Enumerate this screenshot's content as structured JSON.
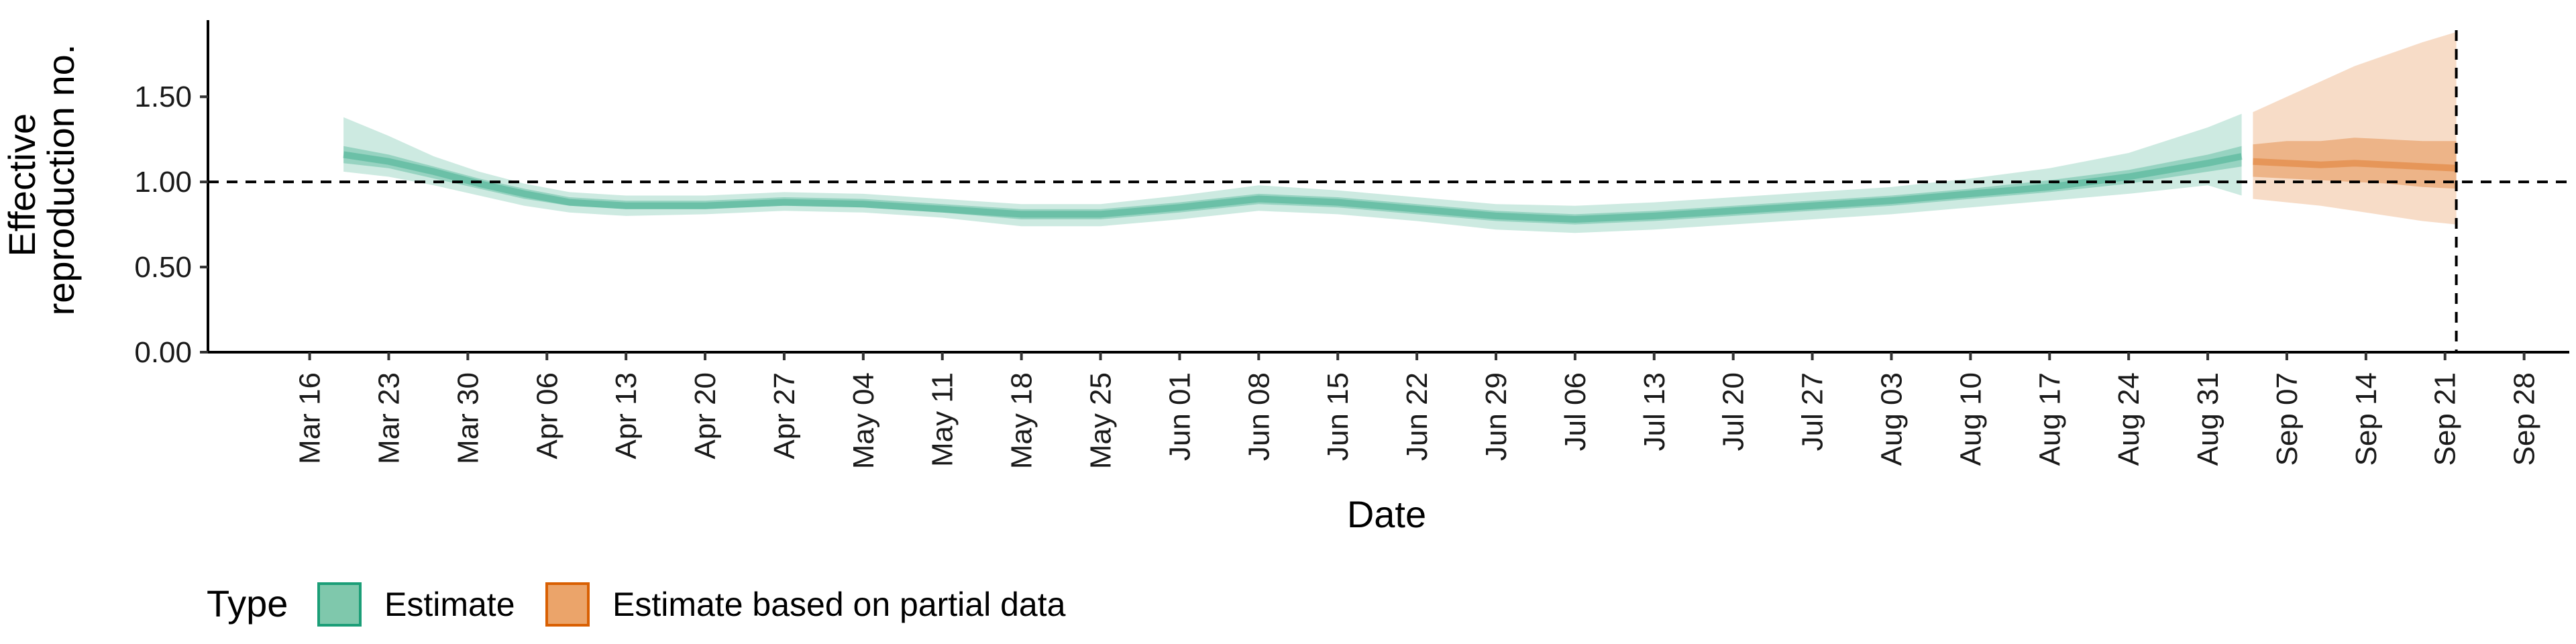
{
  "chart_data": {
    "type": "line",
    "title": "",
    "xlabel": "Date",
    "ylabel": [
      "Effective",
      "reproduction no."
    ],
    "ylim": [
      0,
      1.95
    ],
    "yticks": [
      {
        "value": 0.0,
        "label": "0.00"
      },
      {
        "value": 0.5,
        "label": "0.50"
      },
      {
        "value": 1.0,
        "label": "1.00"
      },
      {
        "value": 1.5,
        "label": "1.50"
      }
    ],
    "xlim": [
      "2020-03-07",
      "2020-10-02"
    ],
    "xticks": [
      {
        "date": "2020-03-16",
        "label": "Mar 16"
      },
      {
        "date": "2020-03-23",
        "label": "Mar 23"
      },
      {
        "date": "2020-03-30",
        "label": "Mar 30"
      },
      {
        "date": "2020-04-06",
        "label": "Apr 06"
      },
      {
        "date": "2020-04-13",
        "label": "Apr 13"
      },
      {
        "date": "2020-04-20",
        "label": "Apr 20"
      },
      {
        "date": "2020-04-27",
        "label": "Apr 27"
      },
      {
        "date": "2020-05-04",
        "label": "May 04"
      },
      {
        "date": "2020-05-11",
        "label": "May 11"
      },
      {
        "date": "2020-05-18",
        "label": "May 18"
      },
      {
        "date": "2020-05-25",
        "label": "May 25"
      },
      {
        "date": "2020-06-01",
        "label": "Jun 01"
      },
      {
        "date": "2020-06-08",
        "label": "Jun 08"
      },
      {
        "date": "2020-06-15",
        "label": "Jun 15"
      },
      {
        "date": "2020-06-22",
        "label": "Jun 22"
      },
      {
        "date": "2020-06-29",
        "label": "Jun 29"
      },
      {
        "date": "2020-07-06",
        "label": "Jul 06"
      },
      {
        "date": "2020-07-13",
        "label": "Jul 13"
      },
      {
        "date": "2020-07-20",
        "label": "Jul 20"
      },
      {
        "date": "2020-07-27",
        "label": "Jul 27"
      },
      {
        "date": "2020-08-03",
        "label": "Aug 03"
      },
      {
        "date": "2020-08-10",
        "label": "Aug 10"
      },
      {
        "date": "2020-08-17",
        "label": "Aug 17"
      },
      {
        "date": "2020-08-24",
        "label": "Aug 24"
      },
      {
        "date": "2020-08-31",
        "label": "Aug 31"
      },
      {
        "date": "2020-09-07",
        "label": "Sep 07"
      },
      {
        "date": "2020-09-14",
        "label": "Sep 14"
      },
      {
        "date": "2020-09-21",
        "label": "Sep 21"
      },
      {
        "date": "2020-09-28",
        "label": "Sep 28"
      }
    ],
    "reference_line_y": 1.0,
    "reference_line_x": "2020-09-22",
    "grid": false,
    "legend": {
      "title": "Type",
      "position": "bottom-left"
    },
    "series": [
      {
        "name": "Estimate",
        "color": "#1b9e77",
        "points": [
          {
            "date": "2020-03-19",
            "median": 1.16,
            "lo50": 1.11,
            "hi50": 1.21,
            "lo90": 1.06,
            "hi90": 1.38
          },
          {
            "date": "2020-03-23",
            "median": 1.12,
            "lo50": 1.08,
            "hi50": 1.16,
            "lo90": 1.03,
            "hi90": 1.27
          },
          {
            "date": "2020-03-27",
            "median": 1.06,
            "lo50": 1.02,
            "hi50": 1.09,
            "lo90": 0.98,
            "hi90": 1.15
          },
          {
            "date": "2020-03-31",
            "median": 0.99,
            "lo50": 0.96,
            "hi50": 1.02,
            "lo90": 0.92,
            "hi90": 1.06
          },
          {
            "date": "2020-04-04",
            "median": 0.93,
            "lo50": 0.9,
            "hi50": 0.96,
            "lo90": 0.86,
            "hi90": 0.99
          },
          {
            "date": "2020-04-08",
            "median": 0.88,
            "lo50": 0.86,
            "hi50": 0.91,
            "lo90": 0.82,
            "hi90": 0.94
          },
          {
            "date": "2020-04-13",
            "median": 0.86,
            "lo50": 0.84,
            "hi50": 0.89,
            "lo90": 0.8,
            "hi90": 0.92
          },
          {
            "date": "2020-04-20",
            "median": 0.86,
            "lo50": 0.84,
            "hi50": 0.89,
            "lo90": 0.81,
            "hi90": 0.92
          },
          {
            "date": "2020-04-27",
            "median": 0.88,
            "lo50": 0.86,
            "hi50": 0.91,
            "lo90": 0.83,
            "hi90": 0.94
          },
          {
            "date": "2020-05-04",
            "median": 0.87,
            "lo50": 0.85,
            "hi50": 0.9,
            "lo90": 0.82,
            "hi90": 0.93
          },
          {
            "date": "2020-05-11",
            "median": 0.84,
            "lo50": 0.82,
            "hi50": 0.87,
            "lo90": 0.79,
            "hi90": 0.9
          },
          {
            "date": "2020-05-18",
            "median": 0.81,
            "lo50": 0.78,
            "hi50": 0.84,
            "lo90": 0.74,
            "hi90": 0.87
          },
          {
            "date": "2020-05-25",
            "median": 0.81,
            "lo50": 0.78,
            "hi50": 0.84,
            "lo90": 0.74,
            "hi90": 0.87
          },
          {
            "date": "2020-06-01",
            "median": 0.85,
            "lo50": 0.82,
            "hi50": 0.88,
            "lo90": 0.78,
            "hi90": 0.92
          },
          {
            "date": "2020-06-08",
            "median": 0.9,
            "lo50": 0.87,
            "hi50": 0.93,
            "lo90": 0.83,
            "hi90": 0.98
          },
          {
            "date": "2020-06-15",
            "median": 0.88,
            "lo50": 0.85,
            "hi50": 0.91,
            "lo90": 0.81,
            "hi90": 0.95
          },
          {
            "date": "2020-06-22",
            "median": 0.84,
            "lo50": 0.81,
            "hi50": 0.87,
            "lo90": 0.77,
            "hi90": 0.91
          },
          {
            "date": "2020-06-29",
            "median": 0.8,
            "lo50": 0.77,
            "hi50": 0.83,
            "lo90": 0.72,
            "hi90": 0.87
          },
          {
            "date": "2020-07-06",
            "median": 0.78,
            "lo50": 0.75,
            "hi50": 0.81,
            "lo90": 0.7,
            "hi90": 0.86
          },
          {
            "date": "2020-07-13",
            "median": 0.8,
            "lo50": 0.77,
            "hi50": 0.83,
            "lo90": 0.72,
            "hi90": 0.88
          },
          {
            "date": "2020-07-20",
            "median": 0.83,
            "lo50": 0.8,
            "hi50": 0.86,
            "lo90": 0.75,
            "hi90": 0.91
          },
          {
            "date": "2020-07-27",
            "median": 0.86,
            "lo50": 0.83,
            "hi50": 0.89,
            "lo90": 0.78,
            "hi90": 0.94
          },
          {
            "date": "2020-08-03",
            "median": 0.89,
            "lo50": 0.86,
            "hi50": 0.92,
            "lo90": 0.81,
            "hi90": 0.97
          },
          {
            "date": "2020-08-10",
            "median": 0.93,
            "lo50": 0.9,
            "hi50": 0.96,
            "lo90": 0.85,
            "hi90": 1.02
          },
          {
            "date": "2020-08-17",
            "median": 0.97,
            "lo50": 0.94,
            "hi50": 1.01,
            "lo90": 0.89,
            "hi90": 1.08
          },
          {
            "date": "2020-08-24",
            "median": 1.03,
            "lo50": 0.99,
            "hi50": 1.07,
            "lo90": 0.93,
            "hi90": 1.17
          },
          {
            "date": "2020-08-31",
            "median": 1.11,
            "lo50": 1.06,
            "hi50": 1.16,
            "lo90": 0.98,
            "hi90": 1.32
          },
          {
            "date": "2020-09-03",
            "median": 1.15,
            "lo50": 1.09,
            "hi50": 1.21,
            "lo90": 0.92,
            "hi90": 1.4
          }
        ]
      },
      {
        "name": "Estimate based on partial data",
        "color": "#d95f02",
        "points": [
          {
            "date": "2020-09-04",
            "median": 1.12,
            "lo50": 1.03,
            "hi50": 1.22,
            "lo90": 0.9,
            "hi90": 1.41
          },
          {
            "date": "2020-09-07",
            "median": 1.11,
            "lo50": 1.02,
            "hi50": 1.24,
            "lo90": 0.88,
            "hi90": 1.5
          },
          {
            "date": "2020-09-10",
            "median": 1.1,
            "lo50": 1.01,
            "hi50": 1.24,
            "lo90": 0.86,
            "hi90": 1.59
          },
          {
            "date": "2020-09-13",
            "median": 1.11,
            "lo50": 1.0,
            "hi50": 1.26,
            "lo90": 0.83,
            "hi90": 1.68
          },
          {
            "date": "2020-09-16",
            "median": 1.1,
            "lo50": 0.99,
            "hi50": 1.25,
            "lo90": 0.8,
            "hi90": 1.75
          },
          {
            "date": "2020-09-19",
            "median": 1.09,
            "lo50": 0.97,
            "hi50": 1.24,
            "lo90": 0.77,
            "hi90": 1.82
          },
          {
            "date": "2020-09-22",
            "median": 1.08,
            "lo50": 0.96,
            "hi50": 1.24,
            "lo90": 0.75,
            "hi90": 1.88
          }
        ]
      }
    ]
  },
  "legend_items": [
    {
      "label": "Estimate",
      "fill": "#7fc8ac",
      "stroke": "#1b9e77"
    },
    {
      "label": "Estimate based on partial data",
      "fill": "#eba46a",
      "stroke": "#d95f02"
    }
  ]
}
